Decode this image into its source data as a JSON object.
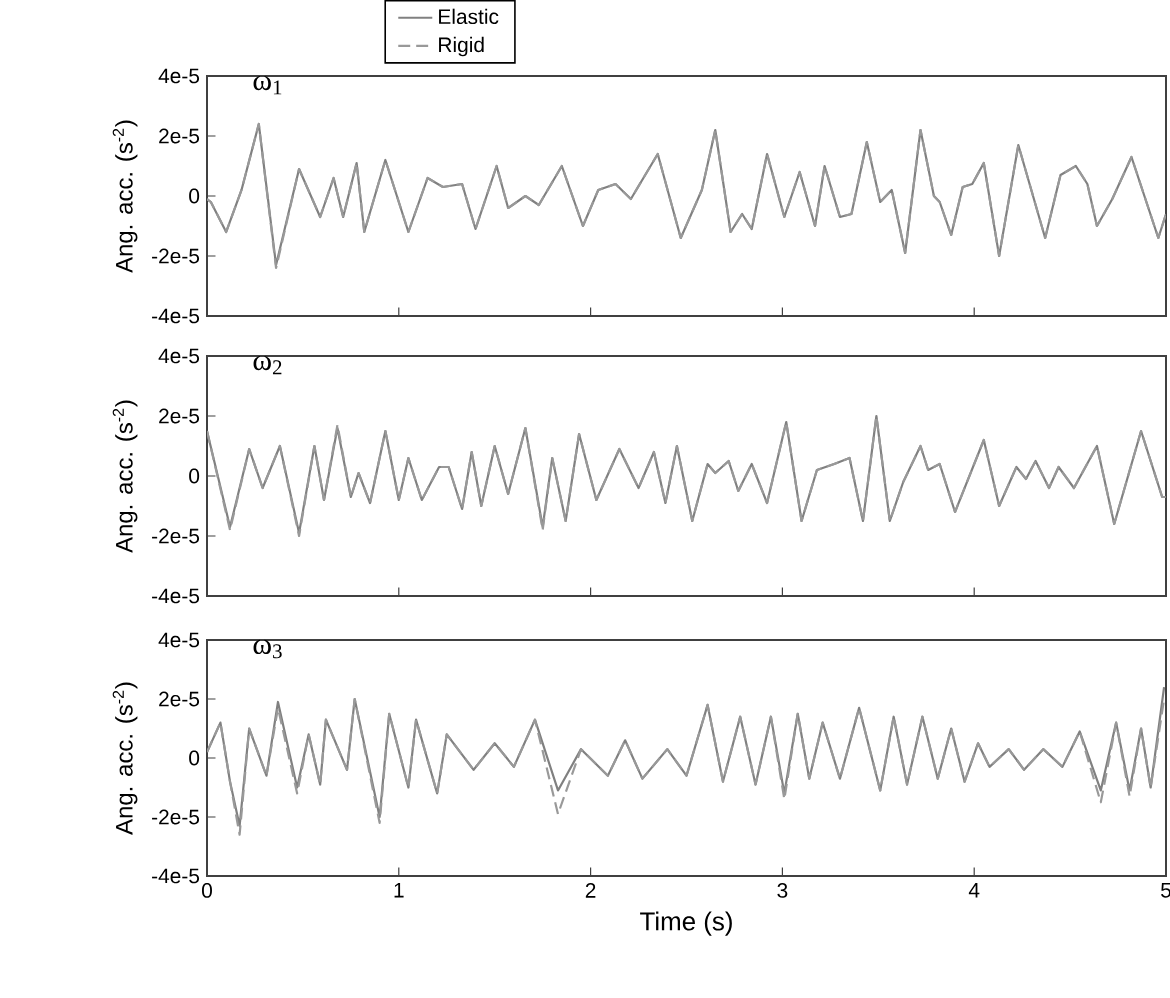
{
  "chart_data": [
    {
      "type": "line",
      "title": "ω$_{1}$",
      "ylabel": "Ang. acc. (s$^{-2}$)",
      "legend": "top",
      "tick_labels": "y",
      "xlim": [
        0,
        5
      ],
      "xticks": [
        0,
        1,
        2,
        3,
        4,
        5
      ],
      "ylim": [
        -4e-05,
        4e-05
      ],
      "yticks": [
        {
          "value": -4e-05,
          "label": "-4e-5"
        },
        {
          "value": -2e-05,
          "label": "-2e-5"
        },
        0,
        {
          "value": 2e-05,
          "label": "2e-5"
        },
        {
          "value": 4e-05,
          "label": "4e-5"
        }
      ],
      "x": [
        0,
        0.02,
        0.1,
        0.18,
        0.27,
        0.36,
        0.48,
        0.59,
        0.66,
        0.71,
        0.78,
        0.82,
        0.93,
        1.05,
        1.15,
        1.23,
        1.33,
        1.4,
        1.51,
        1.57,
        1.66,
        1.73,
        1.85,
        1.96,
        2.04,
        2.13,
        2.21,
        2.35,
        2.47,
        2.58,
        2.65,
        2.73,
        2.79,
        2.84,
        2.92,
        3.01,
        3.09,
        3.17,
        3.22,
        3.3,
        3.36,
        3.44,
        3.51,
        3.57,
        3.64,
        3.72,
        3.79,
        3.82,
        3.88,
        3.94,
        3.99,
        4.05,
        4.13,
        4.23,
        4.37,
        4.45,
        4.53,
        4.59,
        4.64,
        4.72,
        4.82,
        4.96,
        5.0
      ],
      "series": [
        {
          "name": "Elastic",
          "color": "#808080",
          "line_style": "solid",
          "values": [
            -1e-06,
            -2e-06,
            -1.2e-05,
            2e-06,
            2.4e-05,
            -2.3e-05,
            9e-06,
            -7e-06,
            6e-06,
            -7e-06,
            1.1e-05,
            -1.2e-05,
            1.2e-05,
            -1.2e-05,
            6e-06,
            3e-06,
            4e-06,
            -1.1e-05,
            1e-05,
            -4e-06,
            0,
            -3e-06,
            1e-05,
            -1e-05,
            2e-06,
            4e-06,
            -1e-06,
            1.4e-05,
            -1.4e-05,
            2e-06,
            2.2e-05,
            -1.2e-05,
            -6e-06,
            -1.1e-05,
            1.4e-05,
            -7e-06,
            8e-06,
            -1e-05,
            1e-05,
            -7e-06,
            -6e-06,
            1.8e-05,
            -2e-06,
            2e-06,
            -1.9e-05,
            2.2e-05,
            0,
            -2e-06,
            -1.3e-05,
            3e-06,
            4e-06,
            1.1e-05,
            -2e-05,
            1.7e-05,
            -1.4e-05,
            7e-06,
            1e-05,
            4e-06,
            -1e-05,
            -1e-06,
            1.3e-05,
            -1.4e-05,
            -6e-06
          ]
        },
        {
          "name": "Rigid",
          "color": "#999999",
          "line_style": "dashed",
          "values": [
            -1e-06,
            -2e-06,
            -1.2e-05,
            2e-06,
            2.4e-05,
            -2.4e-05,
            9e-06,
            -7e-06,
            6e-06,
            -7e-06,
            1.1e-05,
            -1.2e-05,
            1.2e-05,
            -1.2e-05,
            6e-06,
            3e-06,
            4e-06,
            -1.1e-05,
            1e-05,
            -4e-06,
            0,
            -3e-06,
            1e-05,
            -1e-05,
            2e-06,
            4e-06,
            -1e-06,
            1.4e-05,
            -1.4e-05,
            2e-06,
            2.2e-05,
            -1.2e-05,
            -6e-06,
            -1.1e-05,
            1.4e-05,
            -7e-06,
            8e-06,
            -1e-05,
            1e-05,
            -7e-06,
            -6e-06,
            1.8e-05,
            -2e-06,
            2e-06,
            -1.9e-05,
            2.2e-05,
            0,
            -2e-06,
            -1.3e-05,
            3e-06,
            4e-06,
            1.1e-05,
            -2e-05,
            1.7e-05,
            -1.4e-05,
            7e-06,
            1e-05,
            4e-06,
            -1e-05,
            -1e-06,
            1.3e-05,
            -1.4e-05,
            -6e-06
          ]
        }
      ]
    },
    {
      "type": "line",
      "title": "ω$_{2}$",
      "ylabel": "Ang. acc. (s$^{-2}$)",
      "tick_labels": "y",
      "xlim": [
        0,
        5
      ],
      "xticks": [
        0,
        1,
        2,
        3,
        4,
        5
      ],
      "ylim": [
        -4e-05,
        4e-05
      ],
      "yticks": [
        {
          "value": -4e-05,
          "label": "-4e-5"
        },
        {
          "value": -2e-05,
          "label": "-2e-5"
        },
        0,
        {
          "value": 2e-05,
          "label": "2e-5"
        },
        {
          "value": 4e-05,
          "label": "4e-5"
        }
      ],
      "x": [
        0,
        0.12,
        0.22,
        0.29,
        0.38,
        0.48,
        0.56,
        0.61,
        0.68,
        0.75,
        0.79,
        0.85,
        0.93,
        1.0,
        1.05,
        1.12,
        1.21,
        1.26,
        1.33,
        1.38,
        1.43,
        1.5,
        1.57,
        1.66,
        1.75,
        1.8,
        1.87,
        1.94,
        2.03,
        2.15,
        2.25,
        2.33,
        2.39,
        2.45,
        2.53,
        2.61,
        2.65,
        2.72,
        2.77,
        2.84,
        2.92,
        3.02,
        3.1,
        3.18,
        3.27,
        3.35,
        3.42,
        3.49,
        3.56,
        3.63,
        3.72,
        3.76,
        3.82,
        3.9,
        4.05,
        4.13,
        4.22,
        4.27,
        4.32,
        4.39,
        4.44,
        4.52,
        4.64,
        4.73,
        4.87,
        4.98,
        5.0
      ],
      "series": [
        {
          "color": "#808080",
          "line_style": "solid",
          "values": [
            1.5e-05,
            -1.7e-05,
            9e-06,
            -4e-06,
            1e-05,
            -1.9e-05,
            1e-05,
            -8e-06,
            1.6e-05,
            -7e-06,
            1e-06,
            -9e-06,
            1.5e-05,
            -8e-06,
            6e-06,
            -8e-06,
            3e-06,
            3e-06,
            -1.1e-05,
            8e-06,
            -1e-05,
            1e-05,
            -6e-06,
            1.6e-05,
            -1.7e-05,
            6e-06,
            -1.5e-05,
            1.4e-05,
            -8e-06,
            9e-06,
            -4e-06,
            8e-06,
            -9e-06,
            1e-05,
            -1.5e-05,
            4e-06,
            1e-06,
            5e-06,
            -5e-06,
            4e-06,
            -9e-06,
            1.8e-05,
            -1.5e-05,
            2e-06,
            4e-06,
            6e-06,
            -1.5e-05,
            2e-05,
            -1.5e-05,
            -2e-06,
            1e-05,
            2e-06,
            4e-06,
            -1.2e-05,
            1.2e-05,
            -1e-05,
            3e-06,
            -1e-06,
            5e-06,
            -4e-06,
            3e-06,
            -4e-06,
            1e-05,
            -1.6e-05,
            1.5e-05,
            -7e-06,
            -7e-06
          ]
        },
        {
          "color": "#999999",
          "line_style": "dashed",
          "values": [
            1.5e-05,
            -1.8e-05,
            9e-06,
            -4e-06,
            1e-05,
            -2e-05,
            1e-05,
            -8e-06,
            1.7e-05,
            -7e-06,
            1e-06,
            -9e-06,
            1.5e-05,
            -8e-06,
            6e-06,
            -8e-06,
            3e-06,
            3e-06,
            -1.1e-05,
            8e-06,
            -1e-05,
            1e-05,
            -6e-06,
            1.6e-05,
            -1.8e-05,
            6e-06,
            -1.5e-05,
            1.4e-05,
            -8e-06,
            9e-06,
            -4e-06,
            8e-06,
            -9e-06,
            1e-05,
            -1.5e-05,
            4e-06,
            1e-06,
            5e-06,
            -5e-06,
            4e-06,
            -9e-06,
            1.8e-05,
            -1.5e-05,
            2e-06,
            4e-06,
            6e-06,
            -1.5e-05,
            2e-05,
            -1.5e-05,
            -2e-06,
            1e-05,
            2e-06,
            4e-06,
            -1.2e-05,
            1.2e-05,
            -1e-05,
            3e-06,
            -1e-06,
            5e-06,
            -4e-06,
            3e-06,
            -4e-06,
            1e-05,
            -1.6e-05,
            1.5e-05,
            -7e-06,
            -7e-06
          ]
        }
      ]
    },
    {
      "type": "line",
      "title": "ω$_{3}$",
      "ylabel": "Ang. acc. (s$^{-2}$)",
      "xlabel": "Time (s)",
      "xlim": [
        0,
        5
      ],
      "xticks": [
        0,
        1,
        2,
        3,
        4,
        5
      ],
      "ylim": [
        -4e-05,
        4e-05
      ],
      "yticks": [
        {
          "value": -4e-05,
          "label": "-4e-5"
        },
        {
          "value": -2e-05,
          "label": "-2e-5"
        },
        0,
        {
          "value": 2e-05,
          "label": "2e-5"
        },
        {
          "value": 4e-05,
          "label": "4e-5"
        }
      ],
      "x": [
        0,
        0.07,
        0.12,
        0.17,
        0.22,
        0.31,
        0.37,
        0.47,
        0.53,
        0.59,
        0.62,
        0.73,
        0.77,
        0.9,
        0.95,
        1.05,
        1.09,
        1.2,
        1.25,
        1.39,
        1.5,
        1.6,
        1.71,
        1.83,
        1.95,
        2.09,
        2.18,
        2.27,
        2.4,
        2.5,
        2.61,
        2.69,
        2.78,
        2.86,
        2.94,
        3.01,
        3.08,
        3.14,
        3.21,
        3.3,
        3.4,
        3.51,
        3.58,
        3.65,
        3.73,
        3.81,
        3.88,
        3.95,
        4.02,
        4.08,
        4.18,
        4.26,
        4.36,
        4.46,
        4.55,
        4.66,
        4.74,
        4.81,
        4.87,
        4.92,
        4.99
      ],
      "series": [
        {
          "color": "#808080",
          "line_style": "solid",
          "values": [
            2e-06,
            1.2e-05,
            -8e-06,
            -2.3e-05,
            1e-05,
            -6e-06,
            1.9e-05,
            -1e-05,
            8e-06,
            -9e-06,
            1.3e-05,
            -4e-06,
            2e-05,
            -2e-05,
            1.5e-05,
            -1e-05,
            1.3e-05,
            -1.2e-05,
            8e-06,
            -4e-06,
            5e-06,
            -3e-06,
            1.3e-05,
            -1.1e-05,
            3e-06,
            -6e-06,
            6e-06,
            -7e-06,
            3e-06,
            -6e-06,
            1.8e-05,
            -8e-06,
            1.4e-05,
            -9e-06,
            1.4e-05,
            -1.2e-05,
            1.5e-05,
            -7e-06,
            1.2e-05,
            -7e-06,
            1.7e-05,
            -1.1e-05,
            1.4e-05,
            -9e-06,
            1.4e-05,
            -7e-06,
            1e-05,
            -8e-06,
            5e-06,
            -3e-06,
            3e-06,
            -4e-06,
            3e-06,
            -3e-06,
            9e-06,
            -1.1e-05,
            1.2e-05,
            -1.1e-05,
            1e-05,
            -1e-05,
            2.4e-05
          ]
        },
        {
          "color": "#999999",
          "line_style": "dashed",
          "values": [
            2e-06,
            1.2e-05,
            -8e-06,
            -2.6e-05,
            1e-05,
            -6e-06,
            1.7e-05,
            -1.2e-05,
            8e-06,
            -9e-06,
            1.3e-05,
            -4e-06,
            2e-05,
            -2.2e-05,
            1.5e-05,
            -1e-05,
            1.3e-05,
            -1.2e-05,
            8e-06,
            -4e-06,
            5e-06,
            -3e-06,
            1.3e-05,
            -1.9e-05,
            3e-06,
            -6e-06,
            6e-06,
            -7e-06,
            3e-06,
            -6e-06,
            1.8e-05,
            -8e-06,
            1.4e-05,
            -9e-06,
            1.4e-05,
            -1.4e-05,
            1.5e-05,
            -7e-06,
            1.2e-05,
            -7e-06,
            1.7e-05,
            -1.1e-05,
            1.4e-05,
            -9e-06,
            1.4e-05,
            -7e-06,
            1e-05,
            -8e-06,
            5e-06,
            -3e-06,
            3e-06,
            -4e-06,
            3e-06,
            -3e-06,
            9e-06,
            -1.5e-05,
            1.2e-05,
            -1.3e-05,
            1e-05,
            -1e-05,
            2e-05
          ]
        }
      ]
    }
  ]
}
